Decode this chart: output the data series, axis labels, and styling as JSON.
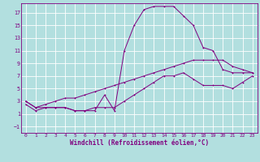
{
  "xlabel": "Windchill (Refroidissement éolien,°C)",
  "background_color": "#b2dfdf",
  "grid_color": "#ffffff",
  "line_color": "#800080",
  "xlim": [
    -0.5,
    23.5
  ],
  "ylim": [
    -2.0,
    18.5
  ],
  "xticks": [
    0,
    1,
    2,
    3,
    4,
    5,
    6,
    7,
    8,
    9,
    10,
    11,
    12,
    13,
    14,
    15,
    16,
    17,
    18,
    19,
    20,
    21,
    22,
    23
  ],
  "yticks": [
    -1,
    1,
    3,
    5,
    7,
    9,
    11,
    13,
    15,
    17
  ],
  "line1_x": [
    0,
    1,
    2,
    3,
    4,
    5,
    6,
    7,
    8,
    9,
    10,
    11,
    12,
    13,
    14,
    15,
    16,
    17,
    18,
    19,
    20,
    21,
    22,
    23
  ],
  "line1_y": [
    2.5,
    1.5,
    2.0,
    2.0,
    2.0,
    1.5,
    1.5,
    1.5,
    4.0,
    1.5,
    11.0,
    15.0,
    17.5,
    18.0,
    18.0,
    18.0,
    16.5,
    15.0,
    11.5,
    11.0,
    8.0,
    7.5,
    7.5,
    7.5
  ],
  "line2_x": [
    0,
    1,
    2,
    3,
    4,
    5,
    6,
    7,
    8,
    9,
    10,
    11,
    12,
    13,
    14,
    15,
    16,
    17,
    18,
    19,
    20,
    21,
    22,
    23
  ],
  "line2_y": [
    3.0,
    2.0,
    2.5,
    3.0,
    3.5,
    3.5,
    4.0,
    4.5,
    5.0,
    5.5,
    6.0,
    6.5,
    7.0,
    7.5,
    8.0,
    8.5,
    9.0,
    9.5,
    9.5,
    9.5,
    9.5,
    8.5,
    8.0,
    7.5
  ],
  "line3_x": [
    0,
    1,
    2,
    3,
    4,
    5,
    6,
    7,
    8,
    9,
    10,
    11,
    12,
    13,
    14,
    15,
    16,
    17,
    18,
    19,
    20,
    21,
    22,
    23
  ],
  "line3_y": [
    3.0,
    2.0,
    2.0,
    2.0,
    2.0,
    1.5,
    1.5,
    2.0,
    2.0,
    2.0,
    3.0,
    4.0,
    5.0,
    6.0,
    7.0,
    7.0,
    7.5,
    6.5,
    5.5,
    5.5,
    5.5,
    5.0,
    6.0,
    7.0
  ],
  "xlabel_fontsize": 5.5,
  "tick_fontsize": 4.5,
  "linewidth": 0.7,
  "markersize": 2.0
}
